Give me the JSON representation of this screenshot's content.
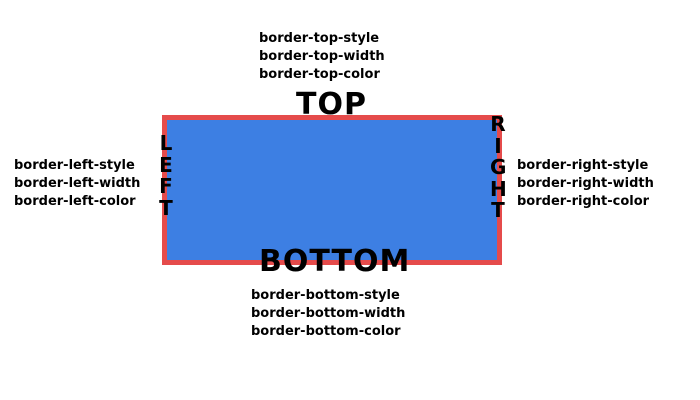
{
  "colors": {
    "box_fill": "#3d7fe3",
    "border": "#e54b4b",
    "text": "#000000"
  },
  "labels": {
    "top": "TOP",
    "bottom": "BOTTOM",
    "left": "LEFT",
    "right": "RIGHT"
  },
  "top_props": [
    "border-top-style",
    "border-top-width",
    "border-top-color"
  ],
  "left_props": [
    "border-left-style",
    "border-left-width",
    "border-left-color"
  ],
  "right_props": [
    "border-right-style",
    "border-right-width",
    "border-right-color"
  ],
  "bottom_props": [
    "border-bottom-style",
    "border-bottom-width",
    "border-bottom-color"
  ]
}
